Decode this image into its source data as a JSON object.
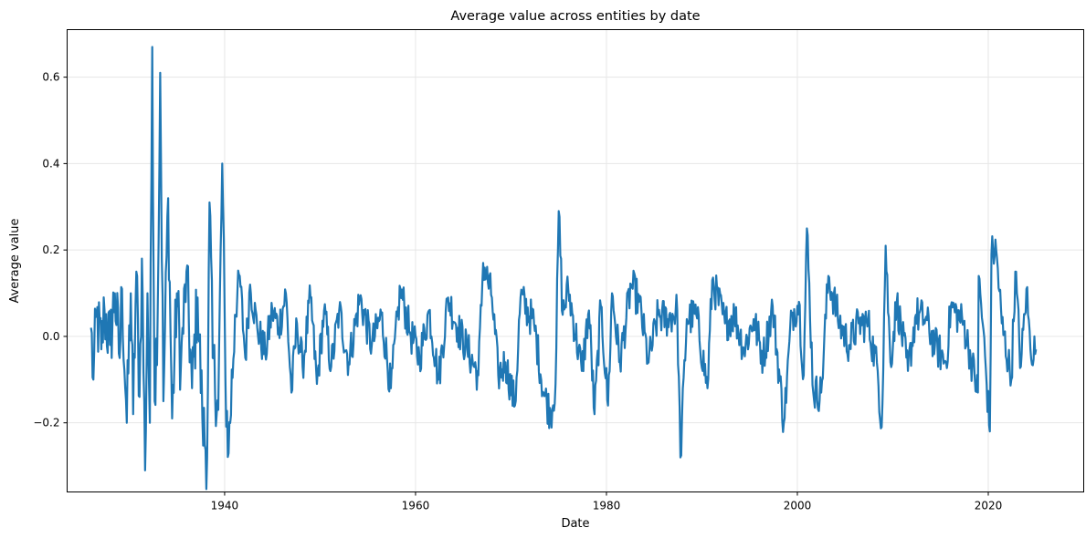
{
  "chart_data": {
    "type": "line",
    "title": "Average value across entities by date",
    "xlabel": "Date",
    "ylabel": "Average value",
    "xlim": [
      1923.5,
      2030.0
    ],
    "ylim": [
      -0.36,
      0.71
    ],
    "grid": true,
    "legend": "none",
    "x_ticks": [
      1940,
      1960,
      1980,
      2000,
      2020
    ],
    "x_tick_labels": [
      "1940",
      "1960",
      "1980",
      "2000",
      "2020"
    ],
    "y_ticks": [
      -0.2,
      0.0,
      0.2,
      0.4,
      0.6
    ],
    "y_tick_labels": [
      "−0.2",
      "0.0",
      "0.2",
      "0.4",
      "0.6"
    ],
    "colors": {
      "line": "#1f77b4",
      "grid": "#e6e6e6",
      "axes": "#000000"
    },
    "series": [
      {
        "color": "#1f77b4",
        "x_start": "1926-01",
        "x_end": "2025-01",
        "frequency": "monthly",
        "key_points": [
          [
            "1926-01",
            0.02
          ],
          [
            "1926-04",
            -0.1
          ],
          [
            "1926-08",
            0.05
          ],
          [
            "1927-02",
            -0.03
          ],
          [
            "1927-06",
            0.06
          ],
          [
            "1928-01",
            -0.02
          ],
          [
            "1928-07",
            0.1
          ],
          [
            "1929-01",
            -0.05
          ],
          [
            "1929-04",
            0.11
          ],
          [
            "1929-10",
            -0.2
          ],
          [
            "1930-03",
            0.1
          ],
          [
            "1930-06",
            -0.18
          ],
          [
            "1930-10",
            0.15
          ],
          [
            "1931-02",
            -0.14
          ],
          [
            "1931-05",
            0.18
          ],
          [
            "1931-09",
            -0.31
          ],
          [
            "1931-12",
            0.1
          ],
          [
            "1932-03",
            -0.2
          ],
          [
            "1932-06",
            0.67
          ],
          [
            "1932-09",
            -0.15
          ],
          [
            "1933-01",
            0.08
          ],
          [
            "1933-04",
            0.61
          ],
          [
            "1933-08",
            -0.15
          ],
          [
            "1934-02",
            0.32
          ],
          [
            "1934-07",
            -0.19
          ],
          [
            "1935-01",
            0.1
          ],
          [
            "1935-06",
            -0.07
          ],
          [
            "1936-01",
            0.15
          ],
          [
            "1936-08",
            -0.12
          ],
          [
            "1937-03",
            0.09
          ],
          [
            "1937-09",
            -0.19
          ],
          [
            "1938-03",
            -0.28
          ],
          [
            "1938-06",
            0.31
          ],
          [
            "1938-10",
            -0.05
          ],
          [
            "1939-05",
            -0.17
          ],
          [
            "1939-10",
            0.4
          ],
          [
            "1940-02",
            -0.1
          ],
          [
            "1940-06",
            -0.27
          ],
          [
            "1941-02",
            0.05
          ],
          [
            "1941-08",
            0.14
          ],
          [
            "1942-03",
            -0.05
          ],
          [
            "1942-09",
            0.12
          ],
          [
            "1943-06",
            0.02
          ],
          [
            "1944-04",
            -0.04
          ],
          [
            "1945-01",
            0.06
          ],
          [
            "1945-09",
            0.02
          ],
          [
            "1946-06",
            0.1
          ],
          [
            "1947-01",
            -0.13
          ],
          [
            "1947-08",
            0.03
          ],
          [
            "1948-03",
            -0.07
          ],
          [
            "1949-01",
            0.09
          ],
          [
            "1949-09",
            -0.11
          ],
          [
            "1950-06",
            0.06
          ],
          [
            "1951-03",
            -0.07
          ],
          [
            "1952-01",
            0.06
          ],
          [
            "1953-01",
            -0.06
          ],
          [
            "1954-03",
            0.09
          ],
          [
            "1955-06",
            -0.02
          ],
          [
            "1956-06",
            0.05
          ],
          [
            "1957-06",
            -0.12
          ],
          [
            "1958-06",
            0.11
          ],
          [
            "1959-06",
            0.01
          ],
          [
            "1960-06",
            -0.05
          ],
          [
            "1961-06",
            0.06
          ],
          [
            "1962-06",
            -0.1
          ],
          [
            "1963-06",
            0.09
          ],
          [
            "1964-06",
            0.02
          ],
          [
            "1965-06",
            -0.03
          ],
          [
            "1966-08",
            -0.09
          ],
          [
            "1967-02",
            0.17
          ],
          [
            "1968-01",
            0.09
          ],
          [
            "1968-09",
            -0.09
          ],
          [
            "1969-06",
            -0.06
          ],
          [
            "1970-06",
            -0.16
          ],
          [
            "1971-01",
            0.09
          ],
          [
            "1972-06",
            0.03
          ],
          [
            "1973-06",
            -0.13
          ],
          [
            "1974-03",
            -0.18
          ],
          [
            "1974-09",
            -0.11
          ],
          [
            "1975-01",
            0.29
          ],
          [
            "1975-06",
            0.05
          ],
          [
            "1976-01",
            0.11
          ],
          [
            "1977-06",
            -0.08
          ],
          [
            "1978-03",
            0.06
          ],
          [
            "1978-10",
            -0.18
          ],
          [
            "1979-06",
            0.07
          ],
          [
            "1980-03",
            -0.16
          ],
          [
            "1980-08",
            0.1
          ],
          [
            "1981-06",
            -0.06
          ],
          [
            "1982-08",
            0.12
          ],
          [
            "1983-06",
            0.08
          ],
          [
            "1984-06",
            -0.06
          ],
          [
            "1985-06",
            0.05
          ],
          [
            "1986-06",
            0.04
          ],
          [
            "1987-06",
            0.06
          ],
          [
            "1987-10",
            -0.28
          ],
          [
            "1988-06",
            0.04
          ],
          [
            "1989-06",
            0.05
          ],
          [
            "1990-08",
            -0.12
          ],
          [
            "1991-02",
            0.13
          ],
          [
            "1992-06",
            0.03
          ],
          [
            "1993-06",
            0.05
          ],
          [
            "1994-06",
            -0.03
          ],
          [
            "1995-06",
            0.04
          ],
          [
            "1996-06",
            -0.05
          ],
          [
            "1997-06",
            0.07
          ],
          [
            "1998-08",
            -0.2
          ],
          [
            "1999-06",
            0.05
          ],
          [
            "2000-03",
            0.08
          ],
          [
            "2000-09",
            -0.09
          ],
          [
            "2001-01",
            0.25
          ],
          [
            "2001-09",
            -0.13
          ],
          [
            "2002-07",
            -0.13
          ],
          [
            "2003-04",
            0.14
          ],
          [
            "2004-06",
            0.03
          ],
          [
            "2005-06",
            -0.02
          ],
          [
            "2006-06",
            0.03
          ],
          [
            "2007-06",
            0.03
          ],
          [
            "2008-06",
            -0.08
          ],
          [
            "2008-11",
            -0.21
          ],
          [
            "2009-04",
            0.21
          ],
          [
            "2009-10",
            -0.06
          ],
          [
            "2010-06",
            0.08
          ],
          [
            "2011-08",
            -0.08
          ],
          [
            "2012-06",
            0.05
          ],
          [
            "2013-06",
            0.04
          ],
          [
            "2014-06",
            -0.02
          ],
          [
            "2015-08",
            -0.06
          ],
          [
            "2016-02",
            0.07
          ],
          [
            "2017-06",
            0.03
          ],
          [
            "2018-03",
            -0.05
          ],
          [
            "2018-12",
            -0.13
          ],
          [
            "2019-01",
            0.14
          ],
          [
            "2019-06",
            0.03
          ],
          [
            "2020-03",
            -0.22
          ],
          [
            "2020-05",
            0.19
          ],
          [
            "2020-11",
            0.2
          ],
          [
            "2021-06",
            0.03
          ],
          [
            "2022-06",
            -0.1
          ],
          [
            "2022-11",
            0.15
          ],
          [
            "2023-06",
            -0.07
          ],
          [
            "2024-01",
            0.11
          ],
          [
            "2024-06",
            -0.03
          ],
          [
            "2025-01",
            -0.03
          ]
        ]
      }
    ]
  }
}
